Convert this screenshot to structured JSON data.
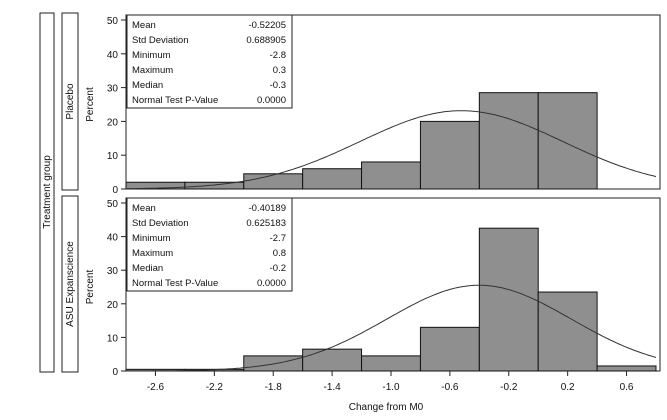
{
  "figure": {
    "outer_strip_label": "Treatment group",
    "xlabel": "Change from M0",
    "ylabel": "Percent",
    "x_ticks": [
      "-2.6",
      "-2.2",
      "-1.8",
      "-1.4",
      "-1.0",
      "-0.6",
      "-0.2",
      "0.2",
      "0.6"
    ],
    "y_ticks": [
      "0",
      "10",
      "20",
      "30",
      "40",
      "50"
    ]
  },
  "stat_labels": [
    "Mean",
    "Std Deviation",
    "Minimum",
    "Maximum",
    "Median",
    "Normal Test P-Value"
  ],
  "chart_data": [
    {
      "type": "bar",
      "panel": "Placebo",
      "bin_edges": [
        -2.8,
        -2.4,
        -2.0,
        -1.6,
        -1.2,
        -0.8,
        -0.4,
        0.0,
        0.4
      ],
      "values": [
        2,
        2,
        4.5,
        6,
        8,
        20,
        28.5,
        28.5
      ],
      "xlim": [
        -2.8,
        0.8
      ],
      "ylim": [
        0,
        50
      ],
      "normal_curve": {
        "mean": -0.52205,
        "sd": 0.688905
      },
      "stats": [
        "-0.52205",
        "0.688905",
        "-2.8",
        "0.3",
        "-0.3",
        "0.0000"
      ]
    },
    {
      "type": "bar",
      "panel": "ASU Expanscience",
      "bin_edges": [
        -2.8,
        -2.4,
        -2.0,
        -1.6,
        -1.2,
        -0.8,
        -0.4,
        0.0,
        0.4,
        0.8
      ],
      "values": [
        0.5,
        0.5,
        4.5,
        6.5,
        4.5,
        13,
        42.5,
        23.5,
        1.5
      ],
      "xlim": [
        -2.8,
        0.8
      ],
      "ylim": [
        0,
        50
      ],
      "normal_curve": {
        "mean": -0.40189,
        "sd": 0.625183
      },
      "stats": [
        "-0.40189",
        "0.625183",
        "-2.7",
        "0.8",
        "-0.2",
        "0.0000"
      ]
    }
  ]
}
